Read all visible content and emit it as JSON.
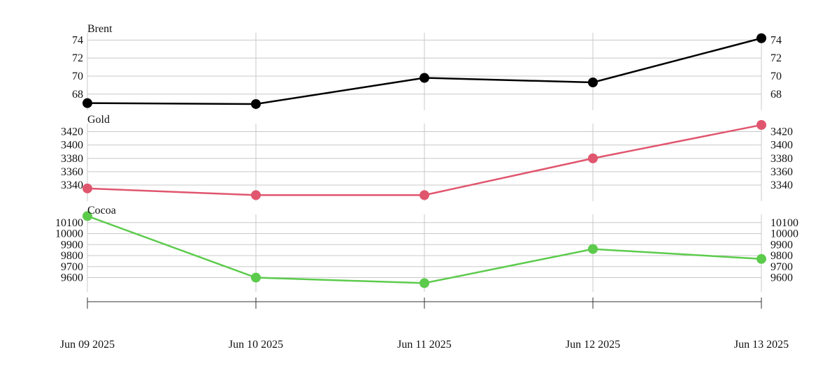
{
  "chart_data": {
    "type": "line",
    "x": [
      "Jun 09 2025",
      "Jun 10 2025",
      "Jun 11 2025",
      "Jun 12 2025",
      "Jun 13 2025"
    ],
    "grid": true,
    "panels": [
      {
        "title": "Brent",
        "color": "#000000",
        "values": [
          67.0,
          66.9,
          69.8,
          69.3,
          74.2
        ],
        "ylim": [
          66.2,
          74.8
        ],
        "yticks": [
          68,
          70,
          72,
          74
        ]
      },
      {
        "title": "Gold",
        "color": "#e0566e",
        "values": [
          3335,
          3325,
          3325,
          3380,
          3430
        ],
        "ylim": [
          3316,
          3432
        ],
        "yticks": [
          3340,
          3360,
          3380,
          3400,
          3420
        ]
      },
      {
        "title": "Cocoa",
        "color": "#5ccb4c",
        "values": [
          10160,
          9600,
          9550,
          9860,
          9770
        ],
        "ylim": [
          9470,
          10175
        ],
        "yticks": [
          9600,
          9700,
          9800,
          9900,
          10000,
          10100
        ]
      }
    ]
  }
}
